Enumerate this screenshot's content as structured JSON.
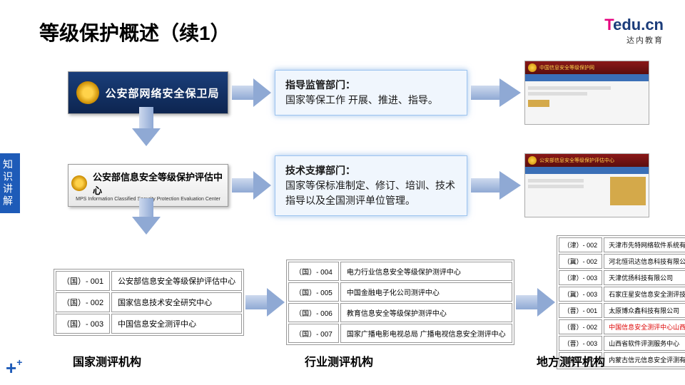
{
  "title": "等级保护概述（续1）",
  "brand": {
    "t": "T",
    "rest": "edu.cn",
    "sub": "达内教育"
  },
  "sidetab": "知识讲解",
  "banner1": {
    "text": "公安部网络安全保卫局"
  },
  "banner2": {
    "text": "公安部信息安全等级保护评估中心",
    "sub": "MPS Information Classified Security Protection Evaluation Center"
  },
  "info1": {
    "title": "指导监管部门：",
    "body": "国家等保工作 开展、推进、指导。"
  },
  "info2": {
    "title": "技术支撑部门：",
    "body": "国家等保标准制定、修订、培训、技术指导以及全国测评单位管理。"
  },
  "screenshot1": {
    "title": "中国信息安全等级保护网"
  },
  "screenshot2": {
    "title": "公安部信息安全等级保护评估中心"
  },
  "table1": {
    "rows": [
      [
        "（国）- 001",
        "公安部信息安全等级保护评估中心"
      ],
      [
        "（国）- 002",
        "国家信息技术安全研究中心"
      ],
      [
        "（国）- 003",
        "中国信息安全测评中心"
      ]
    ]
  },
  "table2": {
    "rows": [
      [
        "（国）- 004",
        "电力行业信息安全等级保护测评中心"
      ],
      [
        "（国）- 005",
        "中国金融电子化公司测评中心"
      ],
      [
        "（国）- 006",
        "教育信息安全等级保护测评中心"
      ],
      [
        "（国）- 007",
        "国家广播电影电视总局 广播电视信息安全测评中心"
      ]
    ]
  },
  "table3": {
    "rows": [
      [
        "（津）- 002",
        "天津市先特网络软件系统有限公司",
        false
      ],
      [
        "（冀）- 002",
        "河北恒讯达信息科技有限公司",
        false
      ],
      [
        "（津）- 003",
        "天津优扬科技有限公司",
        false
      ],
      [
        "（冀）- 003",
        "石家庄星安信息安全测评技术有限公司",
        false
      ],
      [
        "（晋）- 001",
        "太原博众鑫科技有限公司",
        false
      ],
      [
        "（晋）- 002",
        "中国信息安全测评中心山西测评中心",
        true
      ],
      [
        "（晋）- 003",
        "山西省软件评测服务中心",
        false
      ],
      [
        "（蒙）- 001",
        "内蒙古信元信息安全评测有限责任公司",
        false
      ]
    ]
  },
  "labels": {
    "l1": "国家测评机构",
    "l2": "行业测评机构",
    "l3": "地方测评机构"
  },
  "colors": {
    "accent": "#1e5bb8",
    "magenta": "#e6007e",
    "navy": "#1b3c7a",
    "boxbg": "#f0f6fd",
    "boxborder": "#9cc4ef"
  }
}
